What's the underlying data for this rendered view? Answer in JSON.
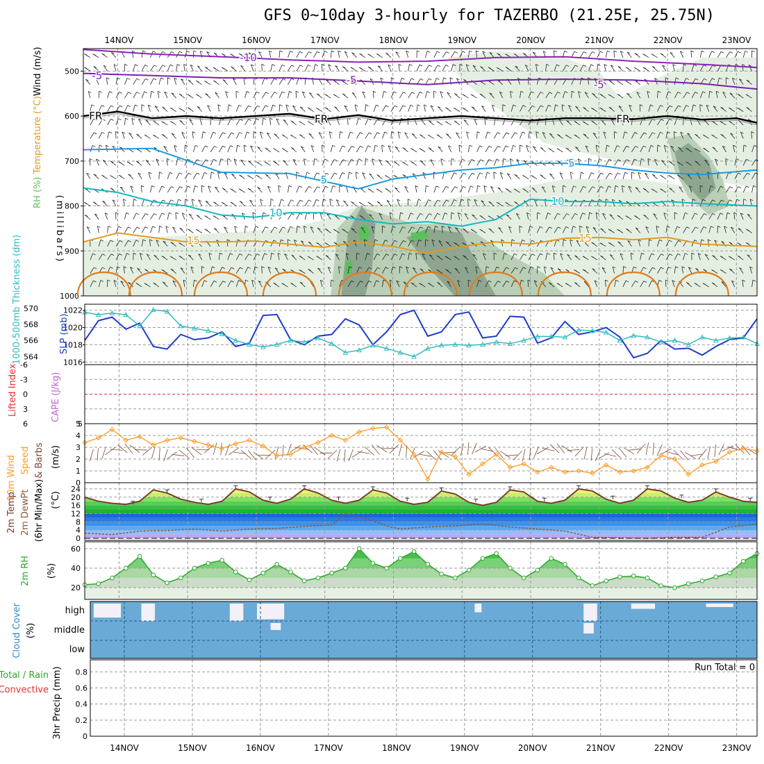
{
  "title": "GFS 0~10day 3-hourly for TAZERBO (21.25E, 25.75N)",
  "colors": {
    "rh_light": "#e4efe2",
    "rh_mid": "#b9cfb6",
    "rh_dark": "#8ea690",
    "rh_green": "#5cc05c",
    "t_minus10": "#8a22b8",
    "t_minus5": "#7a1fb0",
    "t_fr": "#000000",
    "t_5": "#1a9ae0",
    "t_10": "#13b8c0",
    "t_15": "#e09b1d",
    "t_20": "#e07b1d",
    "slp": "#1a3ccc",
    "thickness": "#33bbbb",
    "lifted": "#e03030",
    "wind10": "#ff9a20",
    "temp2m": "#7a3d2a",
    "dew2m": "#8a5a3a",
    "rh2m": "#2aa82a",
    "cloud": "#6aaad6"
  },
  "chart_data": [
    {
      "type": "heatmap",
      "panel": "upper-air",
      "ylabel_parts": [
        "Wind (m/s)",
        "Temperature (°C)",
        "RH (%)"
      ],
      "yunits": "(millibars)",
      "y_ticks": [
        "500",
        "600",
        "700",
        "800",
        "900",
        "1000"
      ],
      "x_ticks": [
        "14NOV",
        "15NOV",
        "16NOV",
        "17NOV",
        "18NOV",
        "19NOV",
        "20NOV",
        "21NOV",
        "22NOV",
        "23NOV"
      ],
      "x_range_days": [
        13.5,
        23.3
      ],
      "y_range_mb": [
        1000,
        450
      ],
      "contour_labels": [
        "-10",
        "-5",
        "FR",
        "5",
        "10",
        "15"
      ],
      "isotherms": [
        {
          "label": "-10",
          "x": [
            13.5,
            14.5,
            15.5,
            16.5,
            17.5,
            18.5,
            19.5,
            20.5,
            21.5,
            22.5,
            23.3
          ],
          "y": [
            452,
            462,
            468,
            475,
            480,
            478,
            470,
            468,
            478,
            485,
            492
          ]
        },
        {
          "label": "-5",
          "x": [
            13.5,
            14.5,
            15.5,
            16.5,
            17.5,
            18.5,
            19.5,
            20.5,
            21.5,
            22.5,
            23.3
          ],
          "y": [
            505,
            510,
            515,
            515,
            522,
            530,
            520,
            518,
            520,
            528,
            540
          ]
        },
        {
          "label": "FR",
          "x": [
            13.5,
            14.0,
            14.5,
            15.0,
            15.5,
            16.0,
            16.5,
            17.0,
            17.5,
            18.0,
            18.5,
            19.0,
            19.5,
            20.0,
            20.5,
            21.0,
            21.5,
            22.0,
            22.5,
            23.0,
            23.3
          ],
          "y": [
            600,
            590,
            605,
            600,
            605,
            600,
            595,
            607,
            598,
            610,
            605,
            600,
            605,
            610,
            605,
            605,
            607,
            600,
            608,
            605,
            615
          ]
        },
        {
          "label": "5",
          "x": [
            13.5,
            14.5,
            15.5,
            16.5,
            17.0,
            17.5,
            18.0,
            18.5,
            19.0,
            19.5,
            20.0,
            20.5,
            21.0,
            21.5,
            22.0,
            22.5,
            23.3
          ],
          "y": [
            675,
            672,
            725,
            728,
            745,
            762,
            740,
            730,
            720,
            715,
            705,
            705,
            710,
            720,
            727,
            730,
            720
          ]
        },
        {
          "label": "10",
          "x": [
            13.5,
            14.0,
            14.5,
            15.0,
            15.5,
            16.0,
            16.5,
            17.0,
            17.5,
            18.0,
            18.5,
            19.0,
            19.5,
            20.0,
            20.5,
            21.0,
            21.5,
            22.0,
            22.5,
            23.3
          ],
          "y": [
            760,
            770,
            790,
            800,
            820,
            825,
            815,
            815,
            830,
            840,
            835,
            845,
            830,
            785,
            790,
            790,
            795,
            790,
            795,
            800
          ]
        },
        {
          "label": "15",
          "x": [
            13.5,
            14.0,
            14.5,
            15.0,
            15.5,
            16.0,
            16.5,
            17.0,
            17.5,
            18.0,
            18.5,
            19.0,
            19.5,
            20.0,
            20.5,
            21.0,
            21.5,
            22.0,
            22.5,
            23.3
          ],
          "y": [
            880,
            860,
            870,
            880,
            880,
            878,
            885,
            892,
            880,
            890,
            905,
            890,
            880,
            885,
            872,
            870,
            875,
            870,
            885,
            890
          ]
        }
      ]
    },
    {
      "type": "line",
      "panel": "slp-thickness",
      "ylabel_left": "1000-500mb Thickness (dm)",
      "ylabel_right": "SLP (mb)",
      "left_ticks": [
        "570",
        "568",
        "566",
        "564"
      ],
      "right_ticks": [
        "1022",
        "1020",
        "1018",
        "1016"
      ],
      "ylim_left": [
        563,
        570.5
      ],
      "ylim_right": [
        1015.7,
        1022.7
      ],
      "series": [
        {
          "name": "SLP (mb)",
          "x": [
            13.5,
            13.7,
            13.9,
            14.1,
            14.3,
            14.5,
            14.7,
            14.9,
            15.1,
            15.3,
            15.5,
            15.7,
            15.9,
            16.1,
            16.3,
            16.5,
            16.7,
            16.9,
            17.1,
            17.3,
            17.5,
            17.7,
            17.9,
            18.1,
            18.3,
            18.5,
            18.7,
            18.9,
            19.1,
            19.3,
            19.5,
            19.7,
            19.9,
            20.1,
            20.3,
            20.5,
            20.7,
            20.9,
            21.1,
            21.3,
            21.5,
            21.7,
            21.9,
            22.1,
            22.3,
            22.5,
            22.7,
            22.9,
            23.1,
            23.3
          ],
          "values": [
            1018.5,
            1020.8,
            1021.2,
            1019.8,
            1020.5,
            1017.8,
            1017.5,
            1019.2,
            1018.6,
            1018.8,
            1019.5,
            1017.8,
            1018.2,
            1021.4,
            1021.5,
            1018.6,
            1018.0,
            1019.0,
            1019.2,
            1021.0,
            1020.3,
            1018.0,
            1019.5,
            1021.5,
            1022.0,
            1019.0,
            1019.5,
            1021.5,
            1021.8,
            1018.8,
            1019.0,
            1021.3,
            1021.2,
            1018.2,
            1018.8,
            1020.7,
            1019.2,
            1019.5,
            1020.0,
            1018.9,
            1016.5,
            1017.0,
            1018.5,
            1017.5,
            1017.6,
            1016.8,
            1017.8,
            1018.6,
            1018.8,
            1021.0
          ]
        },
        {
          "name": "Thickness (dm)",
          "x": [
            13.5,
            13.7,
            13.9,
            14.1,
            14.3,
            14.5,
            14.7,
            14.9,
            15.1,
            15.3,
            15.5,
            15.7,
            15.9,
            16.1,
            16.3,
            16.5,
            16.7,
            16.9,
            17.1,
            17.3,
            17.5,
            17.7,
            17.9,
            18.1,
            18.3,
            18.5,
            18.7,
            18.9,
            19.1,
            19.3,
            19.5,
            19.7,
            19.9,
            20.1,
            20.3,
            20.5,
            20.7,
            20.9,
            21.1,
            21.3,
            21.5,
            21.7,
            21.9,
            22.1,
            22.3,
            22.5,
            22.7,
            22.9,
            23.1,
            23.3
          ],
          "values": [
            569.5,
            569.2,
            569.4,
            569.2,
            567.8,
            569.8,
            569.6,
            567.8,
            567.5,
            567.2,
            566.8,
            566.0,
            565.5,
            565.2,
            565.5,
            566.0,
            565.8,
            566.3,
            565.6,
            564.5,
            564.8,
            565.4,
            565.0,
            564.5,
            564.0,
            565.0,
            565.4,
            565.5,
            565.4,
            565.5,
            565.8,
            565.6,
            566.0,
            566.5,
            566.5,
            566.4,
            567.3,
            567.2,
            567.0,
            566.0,
            566.6,
            566.4,
            565.8,
            566.0,
            565.5,
            566.4,
            566.0,
            566.3,
            566.4,
            565.6
          ]
        }
      ]
    },
    {
      "type": "line",
      "panel": "instability",
      "ylabel_parts": [
        "Lifted Index",
        "CAPE (J/kg)"
      ],
      "left_ticks": [
        "-6",
        "-3",
        "0",
        "3",
        "6"
      ],
      "right_ticks": [
        "5"
      ],
      "ylim": [
        6,
        -6
      ],
      "series": [
        {
          "name": "Lifted Index",
          "x": [
            13.5,
            23.3
          ],
          "values": [
            0,
            0
          ]
        }
      ]
    },
    {
      "type": "line",
      "panel": "wind10m",
      "ylabel_parts": [
        "10m Wind",
        "Speed",
        "& Barbs"
      ],
      "yunits": "(m/s)",
      "y_ticks": [
        "0",
        "1",
        "2",
        "3",
        "4",
        "5"
      ],
      "ylim": [
        0,
        5
      ],
      "series": [
        {
          "name": "10m Wind Speed",
          "x": [
            13.5,
            13.7,
            13.9,
            14.1,
            14.3,
            14.5,
            14.7,
            14.9,
            15.1,
            15.3,
            15.5,
            15.7,
            15.9,
            16.1,
            16.3,
            16.5,
            16.7,
            16.9,
            17.1,
            17.3,
            17.5,
            17.7,
            17.9,
            18.1,
            18.3,
            18.5,
            18.7,
            18.9,
            19.1,
            19.3,
            19.5,
            19.7,
            19.9,
            20.1,
            20.3,
            20.5,
            20.7,
            20.9,
            21.1,
            21.3,
            21.5,
            21.7,
            21.9,
            22.1,
            22.3,
            22.5,
            22.7,
            22.9,
            23.1,
            23.3
          ],
          "values": [
            3.4,
            3.8,
            4.5,
            3.6,
            3.9,
            3.2,
            3.6,
            3.8,
            3.5,
            3.2,
            2.9,
            3.3,
            3.6,
            3.1,
            2.3,
            2.4,
            3.0,
            3.4,
            4.0,
            3.6,
            4.3,
            4.6,
            4.7,
            3.6,
            2.4,
            0.3,
            2.6,
            2.2,
            0.7,
            1.6,
            2.4,
            1.3,
            1.6,
            0.9,
            1.3,
            0.9,
            1.0,
            0.8,
            1.5,
            0.9,
            1.0,
            1.3,
            2.3,
            2.0,
            0.7,
            1.5,
            1.8,
            2.6,
            2.9,
            2.7
          ]
        }
      ]
    },
    {
      "type": "area",
      "panel": "temp2m",
      "ylabel_parts": [
        "2m Temp",
        "2m DewPt",
        "(6hr Min/Max)"
      ],
      "yunits": "(°C)",
      "y_ticks": [
        "0",
        "4",
        "8",
        "12",
        "16",
        "20",
        "24"
      ],
      "ylim": [
        -1,
        27
      ],
      "series": [
        {
          "name": "2m Temp",
          "x": [
            13.5,
            13.7,
            13.9,
            14.1,
            14.3,
            14.5,
            14.7,
            14.9,
            15.1,
            15.3,
            15.5,
            15.7,
            15.9,
            16.1,
            16.3,
            16.5,
            16.7,
            16.9,
            17.1,
            17.3,
            17.5,
            17.7,
            17.9,
            18.1,
            18.3,
            18.5,
            18.7,
            18.9,
            19.1,
            19.3,
            19.5,
            19.7,
            19.9,
            20.1,
            20.3,
            20.5,
            20.7,
            20.9,
            21.1,
            21.3,
            21.5,
            21.7,
            21.9,
            22.1,
            22.3,
            22.5,
            22.7,
            22.9,
            23.1,
            23.3
          ],
          "values": [
            20,
            18,
            17,
            16.5,
            18,
            23.5,
            22,
            19,
            17.5,
            16.5,
            18,
            24,
            22.5,
            18.5,
            17,
            19,
            24,
            22,
            18.5,
            17,
            18.5,
            23.5,
            22,
            18,
            16.5,
            17.5,
            23,
            21.5,
            17.5,
            16,
            17.5,
            23.5,
            22.5,
            18,
            17,
            18.5,
            24,
            23,
            19,
            17,
            18.5,
            24,
            23,
            19.5,
            17.5,
            18.5,
            22.5,
            20,
            18,
            17.5
          ]
        },
        {
          "name": "2m DewPt",
          "x": [
            13.5,
            13.9,
            14.3,
            14.7,
            15.1,
            15.5,
            15.9,
            16.3,
            16.7,
            17.1,
            17.3,
            17.5,
            17.7,
            17.9,
            18.1,
            18.5,
            18.9,
            19.3,
            19.7,
            20.1,
            20.5,
            20.9,
            21.3,
            21.7,
            22.1,
            22.5,
            22.9,
            23.3
          ],
          "values": [
            2.5,
            1.8,
            3.5,
            3.8,
            4.5,
            3.5,
            4.5,
            4.8,
            5.8,
            6.5,
            12,
            10.5,
            8.5,
            6,
            4.5,
            5.5,
            6,
            7,
            5.5,
            4.5,
            3.5,
            0.5,
            0.2,
            0,
            0.5,
            0.5,
            5.5,
            7
          ]
        }
      ]
    },
    {
      "type": "area",
      "panel": "rh2m",
      "ylabel": "2m RH",
      "yunits": "(%)",
      "y_ticks": [
        "20",
        "40",
        "60"
      ],
      "ylim": [
        8,
        67
      ],
      "series": [
        {
          "name": "2m RH",
          "x": [
            13.5,
            13.7,
            13.9,
            14.1,
            14.3,
            14.5,
            14.7,
            14.9,
            15.1,
            15.3,
            15.5,
            15.7,
            15.9,
            16.1,
            16.3,
            16.5,
            16.7,
            16.9,
            17.1,
            17.3,
            17.5,
            17.7,
            17.9,
            18.1,
            18.3,
            18.5,
            18.7,
            18.9,
            19.1,
            19.3,
            19.5,
            19.7,
            19.9,
            20.1,
            20.3,
            20.5,
            20.7,
            20.9,
            21.1,
            21.3,
            21.5,
            21.7,
            21.9,
            22.1,
            22.3,
            22.5,
            22.7,
            22.9,
            23.1,
            23.3
          ],
          "values": [
            23,
            24,
            30,
            40,
            52,
            33,
            25,
            30,
            40,
            45,
            48,
            36,
            28,
            35,
            44,
            36,
            27,
            30,
            35,
            40,
            60,
            45,
            40,
            50,
            57,
            44,
            34,
            30,
            38,
            50,
            55,
            40,
            30,
            38,
            50,
            44,
            30,
            22,
            27,
            31,
            32,
            30,
            22,
            20,
            24,
            27,
            31,
            35,
            47,
            55
          ]
        }
      ]
    },
    {
      "type": "heatmap",
      "panel": "cloud",
      "ylabel": "Cloud Cover",
      "yunits": "(%)",
      "levels": [
        "high",
        "middle",
        "low"
      ],
      "clear_patches": [
        {
          "level": "high",
          "x0": 13.55,
          "x1": 13.95,
          "fraction": 0.8
        },
        {
          "level": "high",
          "x0": 14.25,
          "x1": 14.45,
          "fraction": 1.0
        },
        {
          "level": "high",
          "x0": 15.55,
          "x1": 15.75,
          "fraction": 1.0
        },
        {
          "level": "high",
          "x0": 15.95,
          "x1": 16.35,
          "fraction": 0.9
        },
        {
          "level": "middle",
          "x0": 16.15,
          "x1": 16.3,
          "fraction": 0.4
        },
        {
          "level": "high",
          "x0": 19.15,
          "x1": 19.25,
          "fraction": 0.5
        },
        {
          "level": "high",
          "x0": 20.75,
          "x1": 20.95,
          "fraction": 1.0
        },
        {
          "level": "middle",
          "x0": 20.75,
          "x1": 20.9,
          "fraction": 0.6
        },
        {
          "level": "high",
          "x0": 21.45,
          "x1": 21.8,
          "fraction": 0.3
        },
        {
          "level": "high",
          "x0": 22.55,
          "x1": 22.95,
          "fraction": 0.2
        }
      ]
    },
    {
      "type": "bar",
      "panel": "precip",
      "ylabel_parts": [
        "3hr Precip (mm)",
        "Total / Rain",
        "Convective"
      ],
      "y_ticks": [
        "0",
        "0.2",
        "0.4",
        "0.6",
        "0.8"
      ],
      "ylim": [
        0,
        0.95
      ],
      "run_total": "Run Total = 0",
      "values": []
    }
  ]
}
